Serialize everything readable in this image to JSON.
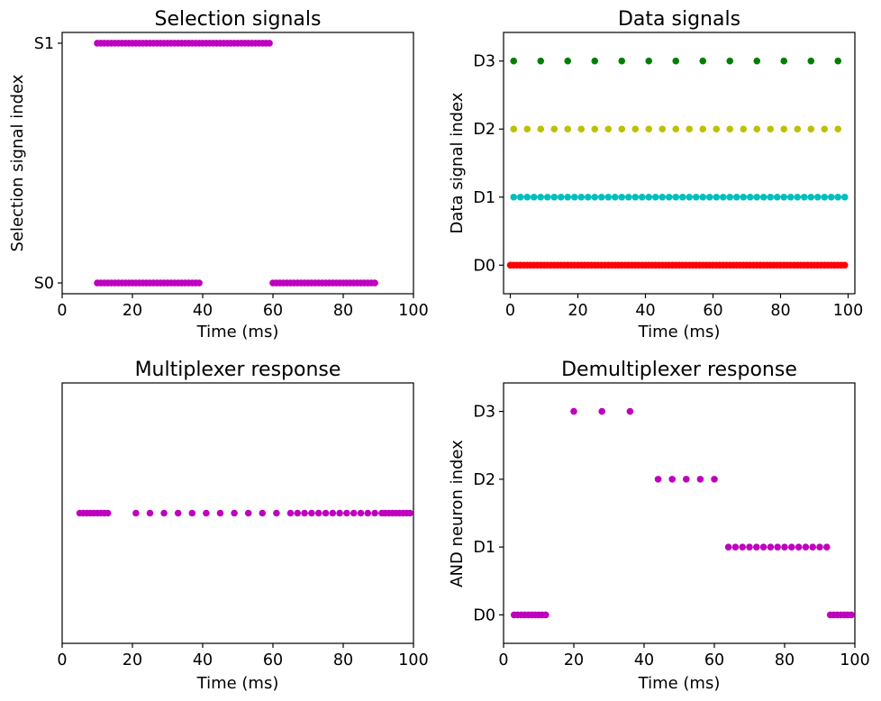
{
  "chart_data": [
    {
      "type": "scatter",
      "title": "Selection signals",
      "xlabel": "Time (ms)",
      "ylabel": "Selection signal index",
      "xlim": [
        0,
        100
      ],
      "xticks": [
        "0",
        "20",
        "40",
        "60",
        "80",
        "100"
      ],
      "yticks": [
        "S0",
        "S1"
      ],
      "ypad": 0.045,
      "series": [
        {
          "level": 1,
          "color": "#bf00bf",
          "start": 10,
          "end": 59,
          "step": 1
        },
        {
          "level": 0,
          "color": "#bf00bf",
          "start": 10,
          "end": 39,
          "step": 1
        },
        {
          "level": 0,
          "color": "#bf00bf",
          "start": 60,
          "end": 89,
          "step": 1
        }
      ]
    },
    {
      "type": "scatter",
      "title": "Data signals",
      "xlabel": "Time (ms)",
      "ylabel": "Data signal index",
      "xlim": [
        -2,
        102
      ],
      "xticks": [
        "0",
        "20",
        "40",
        "60",
        "80",
        "100"
      ],
      "yticks": [
        "D0",
        "D1",
        "D2",
        "D3"
      ],
      "ypad": 0.14,
      "series": [
        {
          "level": 3,
          "color": "#008000",
          "start": 1,
          "end": 97,
          "step": 8
        },
        {
          "level": 2,
          "color": "#bfbf00",
          "start": 1,
          "end": 97,
          "step": 4
        },
        {
          "level": 1,
          "color": "#00bfbf",
          "start": 1,
          "end": 99,
          "step": 2
        },
        {
          "level": 0,
          "color": "#ff0000",
          "start": 0,
          "end": 99,
          "step": 1
        }
      ]
    },
    {
      "type": "scatter",
      "title": "Multiplexer response",
      "xlabel": "Time (ms)",
      "ylabel": "",
      "xlim": [
        0,
        100
      ],
      "xticks": [
        "0",
        "20",
        "40",
        "60",
        "80",
        "100"
      ],
      "yticks": [],
      "ylim": [
        -1,
        1
      ],
      "series": [
        {
          "level": 0,
          "color": "#bf00bf",
          "start": 5,
          "end": 13,
          "step": 1
        },
        {
          "level": 0,
          "color": "#bf00bf",
          "start": 21,
          "end": 61,
          "step": 4
        },
        {
          "level": 0,
          "color": "#bf00bf",
          "start": 65,
          "end": 91,
          "step": 2
        },
        {
          "level": 0,
          "color": "#bf00bf",
          "start": 92,
          "end": 99,
          "step": 1
        }
      ]
    },
    {
      "type": "scatter",
      "title": "Demultiplexer response",
      "xlabel": "Time (ms)",
      "ylabel": "AND neuron index",
      "xlim": [
        0,
        100
      ],
      "xticks": [
        "0",
        "20",
        "40",
        "60",
        "80",
        "100"
      ],
      "yticks": [
        "D0",
        "D1",
        "D2",
        "D3"
      ],
      "ypad": 0.14,
      "series": [
        {
          "level": 3,
          "color": "#bf00bf",
          "start": 20,
          "end": 36,
          "step": 8
        },
        {
          "level": 2,
          "color": "#bf00bf",
          "start": 44,
          "end": 60,
          "step": 4
        },
        {
          "level": 1,
          "color": "#bf00bf",
          "start": 64,
          "end": 92,
          "step": 2
        },
        {
          "level": 0,
          "color": "#bf00bf",
          "start": 3,
          "end": 12,
          "step": 1
        },
        {
          "level": 0,
          "color": "#bf00bf",
          "start": 93,
          "end": 99,
          "step": 1
        }
      ]
    }
  ]
}
